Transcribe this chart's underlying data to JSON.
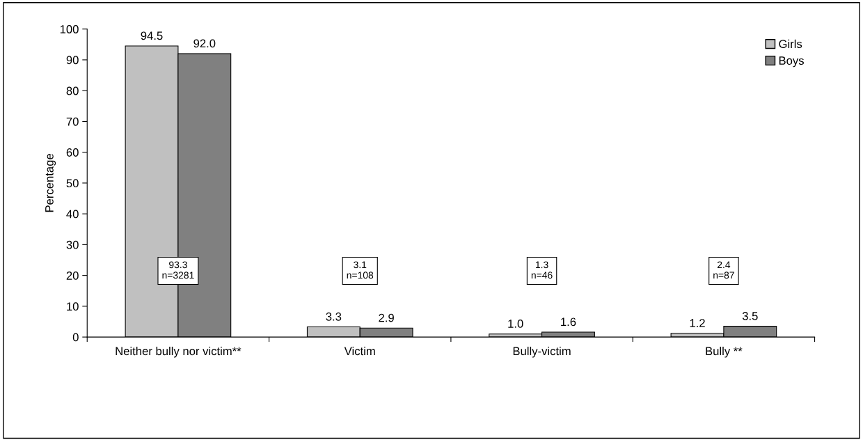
{
  "chart_data": {
    "type": "bar",
    "ylabel": "Percentage",
    "categories": [
      "Neither bully nor victim**",
      "Victim",
      "Bully-victim",
      "Bully **"
    ],
    "series": [
      {
        "name": "Girls",
        "color": "#c0c0c0",
        "values": [
          94.5,
          3.3,
          1.0,
          1.2
        ],
        "value_labels": [
          "94.5",
          "3.3",
          "1.0",
          "1.2"
        ]
      },
      {
        "name": "Boys",
        "color": "#808080",
        "values": [
          92.0,
          2.9,
          1.6,
          3.5
        ],
        "value_labels": [
          "92.0",
          "2.9",
          "1.6",
          "3.5"
        ]
      }
    ],
    "ylim": [
      0,
      100
    ],
    "yticks": [
      0,
      10,
      20,
      30,
      40,
      50,
      60,
      70,
      80,
      90,
      100
    ],
    "grid": false,
    "legend": "top right",
    "annotations": [
      "93.3\nn=3281",
      "3.1\nn=108",
      "1.3\nn=46",
      "2.4\nn=87"
    ]
  }
}
